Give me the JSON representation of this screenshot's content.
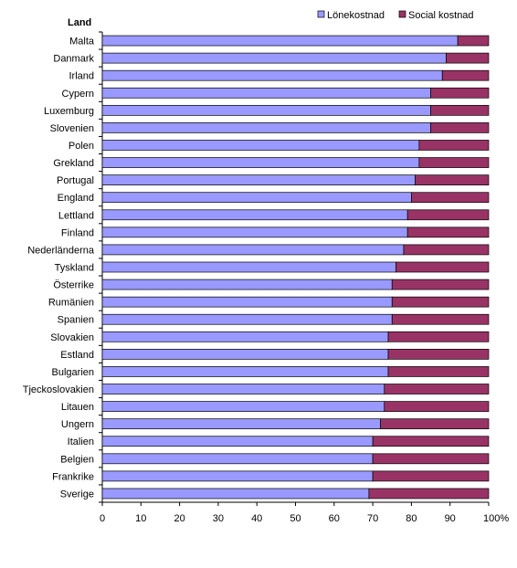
{
  "chart_data": {
    "type": "bar",
    "orientation": "horizontal",
    "stacked": true,
    "category_header": "Land",
    "categories": [
      "Malta",
      "Danmark",
      "Irland",
      "Cypern",
      "Luxemburg",
      "Slovenien",
      "Polen",
      "Grekland",
      "Portugal",
      "England",
      "Lettland",
      "Finland",
      "Nederländerna",
      "Tyskland",
      "Österrike",
      "Rumänien",
      "Spanien",
      "Slovakien",
      "Estland",
      "Bulgarien",
      "Tjeckoslovakien",
      "Litauen",
      "Ungern",
      "Italien",
      "Belgien",
      "Frankrike",
      "Sverige"
    ],
    "series": [
      {
        "name": "Lönekostnad",
        "color": "#9999ff",
        "values": [
          92,
          89,
          88,
          85,
          85,
          85,
          82,
          82,
          81,
          80,
          79,
          79,
          78,
          76,
          75,
          75,
          75,
          74,
          74,
          74,
          73,
          73,
          72,
          70,
          70,
          70,
          69
        ]
      },
      {
        "name": "Social kostnad",
        "color": "#993366",
        "values": [
          8,
          11,
          12,
          15,
          15,
          15,
          18,
          18,
          19,
          20,
          21,
          21,
          22,
          24,
          25,
          25,
          25,
          26,
          26,
          26,
          27,
          27,
          28,
          30,
          30,
          30,
          31
        ]
      }
    ],
    "x_ticks": [
      "0",
      "10",
      "20",
      "30",
      "40",
      "50",
      "60",
      "70",
      "80",
      "90",
      "100%"
    ],
    "xlim": [
      0,
      100
    ],
    "grid": false,
    "legend_position": "top-right"
  }
}
